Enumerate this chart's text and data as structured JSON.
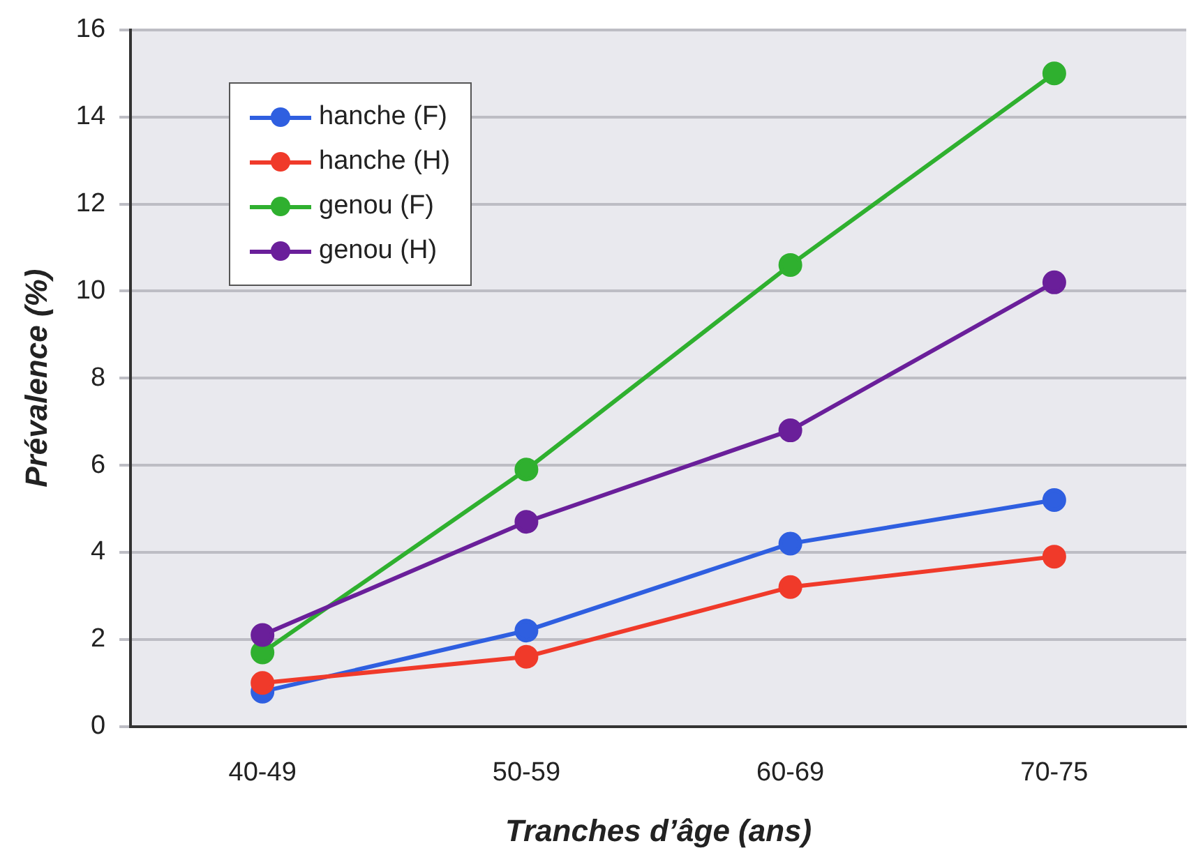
{
  "chart_data": {
    "type": "line",
    "xlabel": "Tranches d’âge (ans)",
    "ylabel": "Prévalence (%)",
    "categories": [
      "40-49",
      "50-59",
      "60-69",
      "70-75"
    ],
    "series": [
      {
        "name": "hanche (F)",
        "color": "#2f5fe0",
        "values": [
          0.8,
          2.2,
          4.2,
          5.2
        ]
      },
      {
        "name": "hanche (H)",
        "color": "#f03a2a",
        "values": [
          1.0,
          1.6,
          3.2,
          3.9
        ]
      },
      {
        "name": "genou (F)",
        "color": "#2fb02f",
        "values": [
          1.7,
          5.9,
          10.6,
          15.0
        ]
      },
      {
        "name": "genou (H)",
        "color": "#6a1f9a",
        "values": [
          2.1,
          4.7,
          6.8,
          10.2
        ]
      }
    ],
    "ylim": [
      0,
      16
    ],
    "yticks": [
      0,
      2,
      4,
      6,
      8,
      10,
      12,
      14,
      16
    ],
    "grid": "y",
    "legend": "top left",
    "marker": "circle",
    "line_style": "solid"
  }
}
